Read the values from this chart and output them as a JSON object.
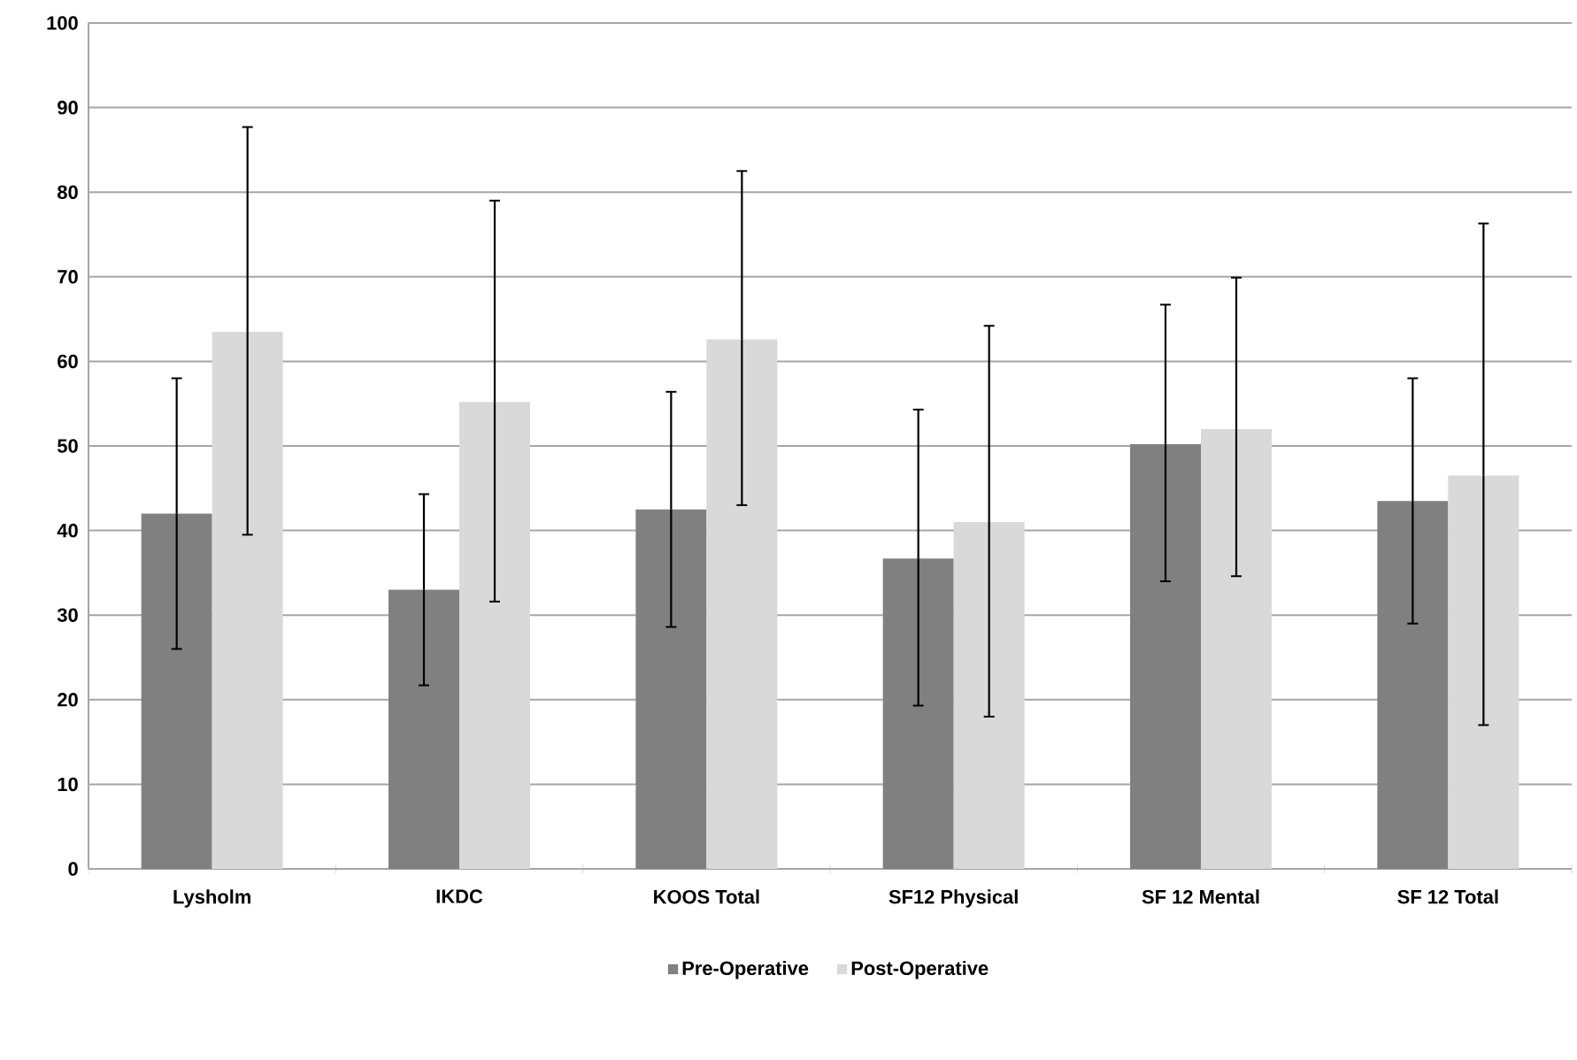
{
  "chart_data": {
    "type": "bar",
    "categories": [
      "Lysholm",
      "IKDC",
      "KOOS Total",
      "SF12 Physical",
      "SF 12 Mental",
      "SF 12 Total"
    ],
    "series": [
      {
        "name": "Pre-Operative",
        "color": "#808080",
        "values": [
          42,
          33,
          42.5,
          36.7,
          50.2,
          43.5
        ],
        "errors": [
          [
            26,
            58
          ],
          [
            21.7,
            44.3
          ],
          [
            28.6,
            56.4
          ],
          [
            19.3,
            54.3
          ],
          [
            34,
            66.7
          ],
          [
            29,
            58
          ]
        ]
      },
      {
        "name": "Post-Operative",
        "color": "#d9d9d9",
        "values": [
          63.5,
          55.2,
          62.6,
          41,
          52,
          46.5
        ],
        "errors": [
          [
            39.5,
            87.7
          ],
          [
            31.6,
            79
          ],
          [
            43,
            82.5
          ],
          [
            18,
            64.2
          ],
          [
            34.6,
            69.9
          ],
          [
            17,
            76.3
          ]
        ]
      }
    ],
    "ylim": [
      0,
      100
    ],
    "yticks": [
      0,
      10,
      20,
      30,
      40,
      50,
      60,
      70,
      80,
      90,
      100
    ],
    "grid": "y",
    "legend": "bottom"
  }
}
